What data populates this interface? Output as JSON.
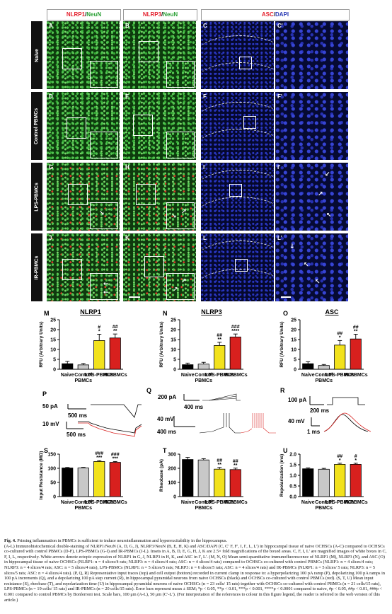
{
  "columns": {
    "c1": {
      "red": "NLRP1",
      "sep": "/",
      "green": "NeuN"
    },
    "c2": {
      "red": "NLRP3",
      "sep": "/",
      "green": "NeuN"
    },
    "c3": {
      "red": "ASC",
      "sep": "/",
      "blue": "DAPI"
    }
  },
  "rows": [
    "Naive",
    "Control PBMCs",
    "LPS-PBMCs",
    "IR-PBMCs"
  ],
  "panels": {
    "r1": [
      "A",
      "B",
      "C",
      "C'"
    ],
    "r2": [
      "D",
      "E",
      "F",
      "F'"
    ],
    "r3": [
      "G",
      "H",
      "I",
      "I'"
    ],
    "r4": [
      "J",
      "K",
      "L",
      "L'"
    ]
  },
  "chart_data": [
    {
      "type": "bar",
      "panel": "M",
      "title": "NLRP1",
      "ylabel": "RFU (Arbitrary Units)",
      "ylim": [
        0,
        25
      ],
      "yticks": [
        "0",
        "5",
        "10",
        "15",
        "20",
        "25"
      ],
      "categories": [
        "Naive",
        "Control PBMCs",
        "LPS-PBMCs",
        "IR-PBMCs"
      ],
      "values": [
        2.8,
        2.2,
        14.5,
        15.8
      ],
      "errors": [
        1.2,
        0.7,
        3.2,
        2.0
      ],
      "colors": [
        "#000000",
        "#c8c8c8",
        "#f2e21c",
        "#d8201e"
      ],
      "sig_top": [
        "",
        "",
        "#",
        "##"
      ],
      "sig_bottom": [
        "",
        "",
        "*",
        "**"
      ]
    },
    {
      "type": "bar",
      "panel": "N",
      "title": "NLRP3",
      "ylabel": "RFU (Arbitrary Units)",
      "ylim": [
        0,
        25
      ],
      "yticks": [
        "0",
        "5",
        "10",
        "15",
        "20",
        "25"
      ],
      "categories": [
        "Naive",
        "Control PBMCs",
        "LPS-PBMCs",
        "IR-PBMCs"
      ],
      "values": [
        2.3,
        2.6,
        12.0,
        16.3
      ],
      "errors": [
        0.8,
        0.9,
        1.6,
        1.5
      ],
      "colors": [
        "#000000",
        "#c8c8c8",
        "#f2e21c",
        "#d8201e"
      ],
      "sig_top": [
        "",
        "",
        "##",
        "###"
      ],
      "sig_bottom": [
        "",
        "",
        "**",
        "****"
      ]
    },
    {
      "type": "bar",
      "panel": "O",
      "title": "ASC",
      "ylabel": "RFU (Arbitrary Units)",
      "ylim": [
        0,
        25
      ],
      "yticks": [
        "0",
        "5",
        "10",
        "15",
        "20",
        "25"
      ],
      "categories": [
        "Naive",
        "Control PBMCs",
        "LPS-PBMCs",
        "IR-PBMCs"
      ],
      "values": [
        2.8,
        1.9,
        12.2,
        15.3
      ],
      "errors": [
        1.0,
        0.5,
        2.3,
        2.4
      ],
      "colors": [
        "#000000",
        "#c8c8c8",
        "#f2e21c",
        "#d8201e"
      ],
      "sig_top": [
        "",
        "",
        "##",
        "##"
      ],
      "sig_bottom": [
        "",
        "",
        "*",
        "**"
      ]
    },
    {
      "type": "bar",
      "panel": "S",
      "ylabel": "Input Resistance (MΩ)",
      "ylim": [
        0,
        150
      ],
      "yticks": [
        "0",
        "50",
        "100",
        "150"
      ],
      "categories": [
        "Naive",
        "Control PBMCs",
        "LPS-PBMCs",
        "IR-PBMCs"
      ],
      "values": [
        101,
        101,
        124,
        121
      ],
      "errors": [
        2,
        2,
        3,
        3
      ],
      "colors": [
        "#000000",
        "#c8c8c8",
        "#f2e21c",
        "#d8201e"
      ],
      "sig_top": [
        "",
        "",
        "###",
        "###"
      ],
      "sig_bottom": [
        "",
        "",
        "***",
        "***"
      ]
    },
    {
      "type": "bar",
      "panel": "T",
      "ylabel": "Rheobase (pA)",
      "ylim": [
        0,
        300
      ],
      "yticks": [
        "0",
        "100",
        "200",
        "300"
      ],
      "categories": [
        "Naive",
        "Control PBMCs",
        "LPS-PBMCs",
        "IR-PBMCs"
      ],
      "values": [
        262,
        259,
        194,
        191
      ],
      "errors": [
        15,
        9,
        12,
        10
      ],
      "colors": [
        "#000000",
        "#c8c8c8",
        "#f2e21c",
        "#d8201e"
      ],
      "sig_top": [
        "",
        "",
        "##",
        "##"
      ],
      "sig_bottom": [
        "",
        "",
        "**",
        "**"
      ]
    },
    {
      "type": "bar",
      "panel": "U",
      "ylabel": "Repolarization (ms)",
      "ylim": [
        0,
        2.0
      ],
      "yticks": [
        "0.0",
        "0.5",
        "1.0",
        "1.5",
        "2.0"
      ],
      "categories": [
        "Naive",
        "Control PBMCs",
        "LPS-PBMCs",
        "IR-PBMCs"
      ],
      "values": [
        1.31,
        1.29,
        1.52,
        1.52
      ],
      "errors": [
        0.04,
        0.04,
        0.05,
        0.05
      ],
      "colors": [
        "#000000",
        "#c8c8c8",
        "#f2e21c",
        "#d8201e"
      ],
      "sig_top": [
        "",
        "",
        "##",
        "#"
      ],
      "sig_bottom": [
        "",
        "",
        "*",
        "*"
      ]
    }
  ],
  "traces": {
    "P": {
      "label": "P",
      "scale1": "50 pA",
      "time1": "500 ms",
      "scale2": "10 mV",
      "time2": "500 ms"
    },
    "Q": {
      "label": "Q",
      "scale1": "200 pA",
      "time1": "400 ms",
      "scale2": "40 mV",
      "time2": "400 ms"
    },
    "R": {
      "label": "R",
      "scale1": "100 pA",
      "time1": "200 ms",
      "scale2": "40 mV",
      "time2": "1 ms"
    }
  },
  "caption": {
    "title": "Fig. 4.",
    "title_text": "Priming inflammation in PBMCs is sufficient to induce neuroinflammation and hyperexcitability in the hippocampus.",
    "body": "(A-L) Immunohistochemical double-staining of NLRP1/NeuN (A, D, G, J), NLRP3/NeuN (B, E, H, K) and ASC/DAPI (C, C′ F, F′, I, I′, L, L′) in hippocampal tissue of naive OCHSCs (A-C) compared to OCHSCs co-cultured with control PBMCs (D-F), LPS-PBMCs (G-I) and IR-PBMCs (J-L). Insets in A, B, D, E, G, H, J, K are 2.5× fold magnifications of the boxed areas. C, F, I, L′ are magnified images of white boxes in C, F, I, L, respectively. White arrows denote ectopic expression of NLRP1 in G, J, NLRP3 in H, K, and ASC in I′, L′. (M, N, O) Mean semi-quantitative immunofluorescence of NLRP1 (M), NLRP3 (N), and ASC (O) in hippocampal tissue of naive OCHSCs (NLRP1: n = 4 slices/4 rats; NLRP3: n = 4 slices/4 rats; ASC: n = 4 slices/4 rats) compared to OCHSCs co-cultured with control PBMCs (NLRP1: n = 4 slices/4 rats; NLRP3: n = 4 slices/4 rats; ASC: n = 5 slices/4 rats), LPS-PBMCs (NLRP1: n = 5 slices/5 rats; NLRP3: n = 6 slices/5 rats; ASC: n = 4 slices/4 rats) and IR-PBMCs (NLRP1: n = 5 slices/ 5 rats; NLRP3: n = 5 slices/5 rats; ASC: n = 4 slices/4 rats). (P, Q, R) Representative input traces (top) and cell output (bottom) recorded in current clamp in response to: a hyperpolarizing 100 pA ramp (P), depolarizing 100 pA ramps in 100 pA increments (Q), and a depolarizing 100 pA step current (R), in hippocampal pyramidal neurons from naive OCHSCs (black) and OCHSCs co-cultured with control PBMCs (red). (S, T, U) Mean input resistance (S), rheobase (T), and repolarization time (U) in hippocampal pyramidal neurons of naive OCHSCs (n = 23 cells/ 15 rats) together with OCHSCs co-cultured with control PBMCs (n = 21 cells/15 rats), LPS-PBMCs (n = 19 cells/ 15 rats) and IR-PBMCs (n = 20 cells/15 rats). Error bars represent mean ± SEM; *p < 0.05, **p < 0.01, ***p < 0.001, ****p < 0.0001 compared to naive, #p < 0.05, ##p < 0.01, ###p < 0.001 compared to control PBMCs by Bonferroni test. Scale bars, 100 μm (A-L), 50 μm (C′-L′). (For interpretation of the references to colour in this figure legend, the reader is referred to the web version of this article.)"
  }
}
